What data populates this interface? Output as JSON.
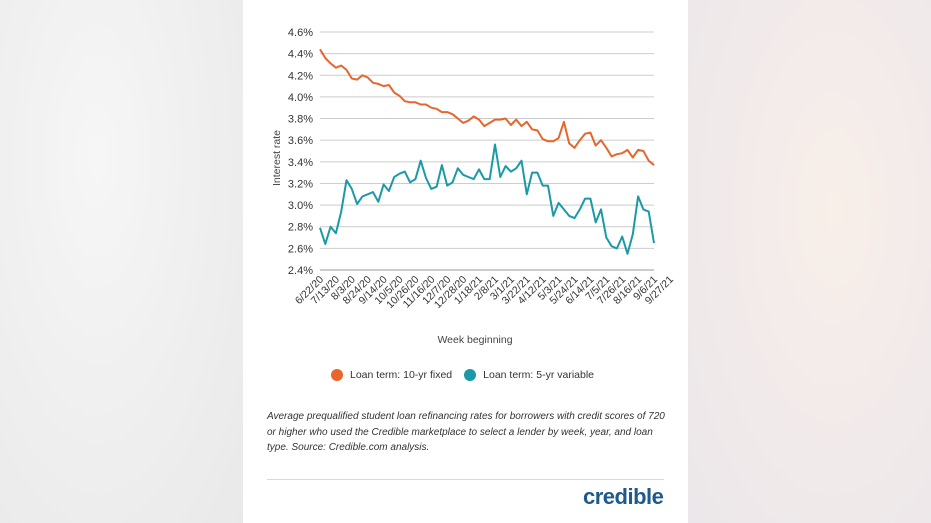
{
  "chart_data": {
    "type": "line",
    "xlabel": "Week beginning",
    "ylabel": "Interest rate",
    "ylim": [
      2.4,
      4.6
    ],
    "y_ticks": [
      "4.6%",
      "4.4%",
      "4.2%",
      "4.0%",
      "3.8%",
      "3.6%",
      "3.4%",
      "3.2%",
      "3.0%",
      "2.8%",
      "2.6%",
      "2.4%"
    ],
    "x_tick_labels": [
      "6/22/20",
      "7/13/20",
      "8/3/20",
      "8/24/20",
      "9/14/20",
      "10/5/20",
      "10/26/20",
      "11/16/20",
      "12/7/20",
      "12/28/20",
      "1/18/21",
      "2/8/21",
      "3/1/21",
      "3/22/21",
      "4/12/21",
      "5/3/21",
      "5/24/21",
      "6/14/21",
      "7/5/21",
      "7/26/21",
      "8/16/21",
      "9/6/21",
      "9/27/21"
    ],
    "x_tick_weeks": [
      0,
      3,
      6,
      9,
      12,
      15,
      18,
      21,
      24,
      27,
      30,
      33,
      36,
      39,
      42,
      45,
      48,
      51,
      54,
      57,
      60,
      63,
      66
    ],
    "grid": true,
    "legend_position": "bottom",
    "series": [
      {
        "name": "Loan term: 10-yr fixed",
        "color": "#e8652b",
        "values": [
          4.44,
          4.36,
          4.31,
          4.27,
          4.29,
          4.25,
          4.17,
          4.16,
          4.2,
          4.18,
          4.13,
          4.12,
          4.1,
          4.11,
          4.04,
          4.01,
          3.96,
          3.95,
          3.95,
          3.93,
          3.93,
          3.9,
          3.89,
          3.86,
          3.86,
          3.84,
          3.8,
          3.76,
          3.78,
          3.82,
          3.79,
          3.73,
          3.76,
          3.79,
          3.79,
          3.8,
          3.74,
          3.79,
          3.73,
          3.77,
          3.7,
          3.69,
          3.61,
          3.59,
          3.59,
          3.62,
          3.77,
          3.57,
          3.53,
          3.6,
          3.66,
          3.67,
          3.55,
          3.6,
          3.53,
          3.45,
          3.47,
          3.48,
          3.51,
          3.44,
          3.51,
          3.5,
          3.41,
          3.37
        ]
      },
      {
        "name": "Loan term: 5-yr variable",
        "color": "#1a9aa6",
        "values": [
          2.79,
          2.64,
          2.8,
          2.74,
          2.94,
          3.23,
          3.15,
          3.01,
          3.08,
          3.1,
          3.12,
          3.03,
          3.19,
          3.13,
          3.26,
          3.29,
          3.31,
          3.21,
          3.24,
          3.41,
          3.25,
          3.15,
          3.17,
          3.37,
          3.18,
          3.21,
          3.34,
          3.28,
          3.26,
          3.24,
          3.33,
          3.24,
          3.24,
          3.56,
          3.26,
          3.36,
          3.31,
          3.34,
          3.41,
          3.1,
          3.3,
          3.3,
          3.18,
          3.18,
          2.9,
          3.02,
          2.96,
          2.9,
          2.88,
          2.96,
          3.06,
          3.06,
          2.84,
          2.96,
          2.7,
          2.62,
          2.6,
          2.71,
          2.55,
          2.73,
          3.08,
          2.96,
          2.94,
          2.65
        ]
      }
    ]
  },
  "caption": "Average prequalified student loan refinancing rates for borrowers with credit scores of 720 or higher who used the Credible marketplace to select a lender by week, year, and loan type. Source: Credible.com analysis.",
  "logo_text": "credible",
  "colors": {
    "orange": "#e8652b",
    "teal": "#1a9aa6",
    "logo": "#1f5a8c"
  }
}
